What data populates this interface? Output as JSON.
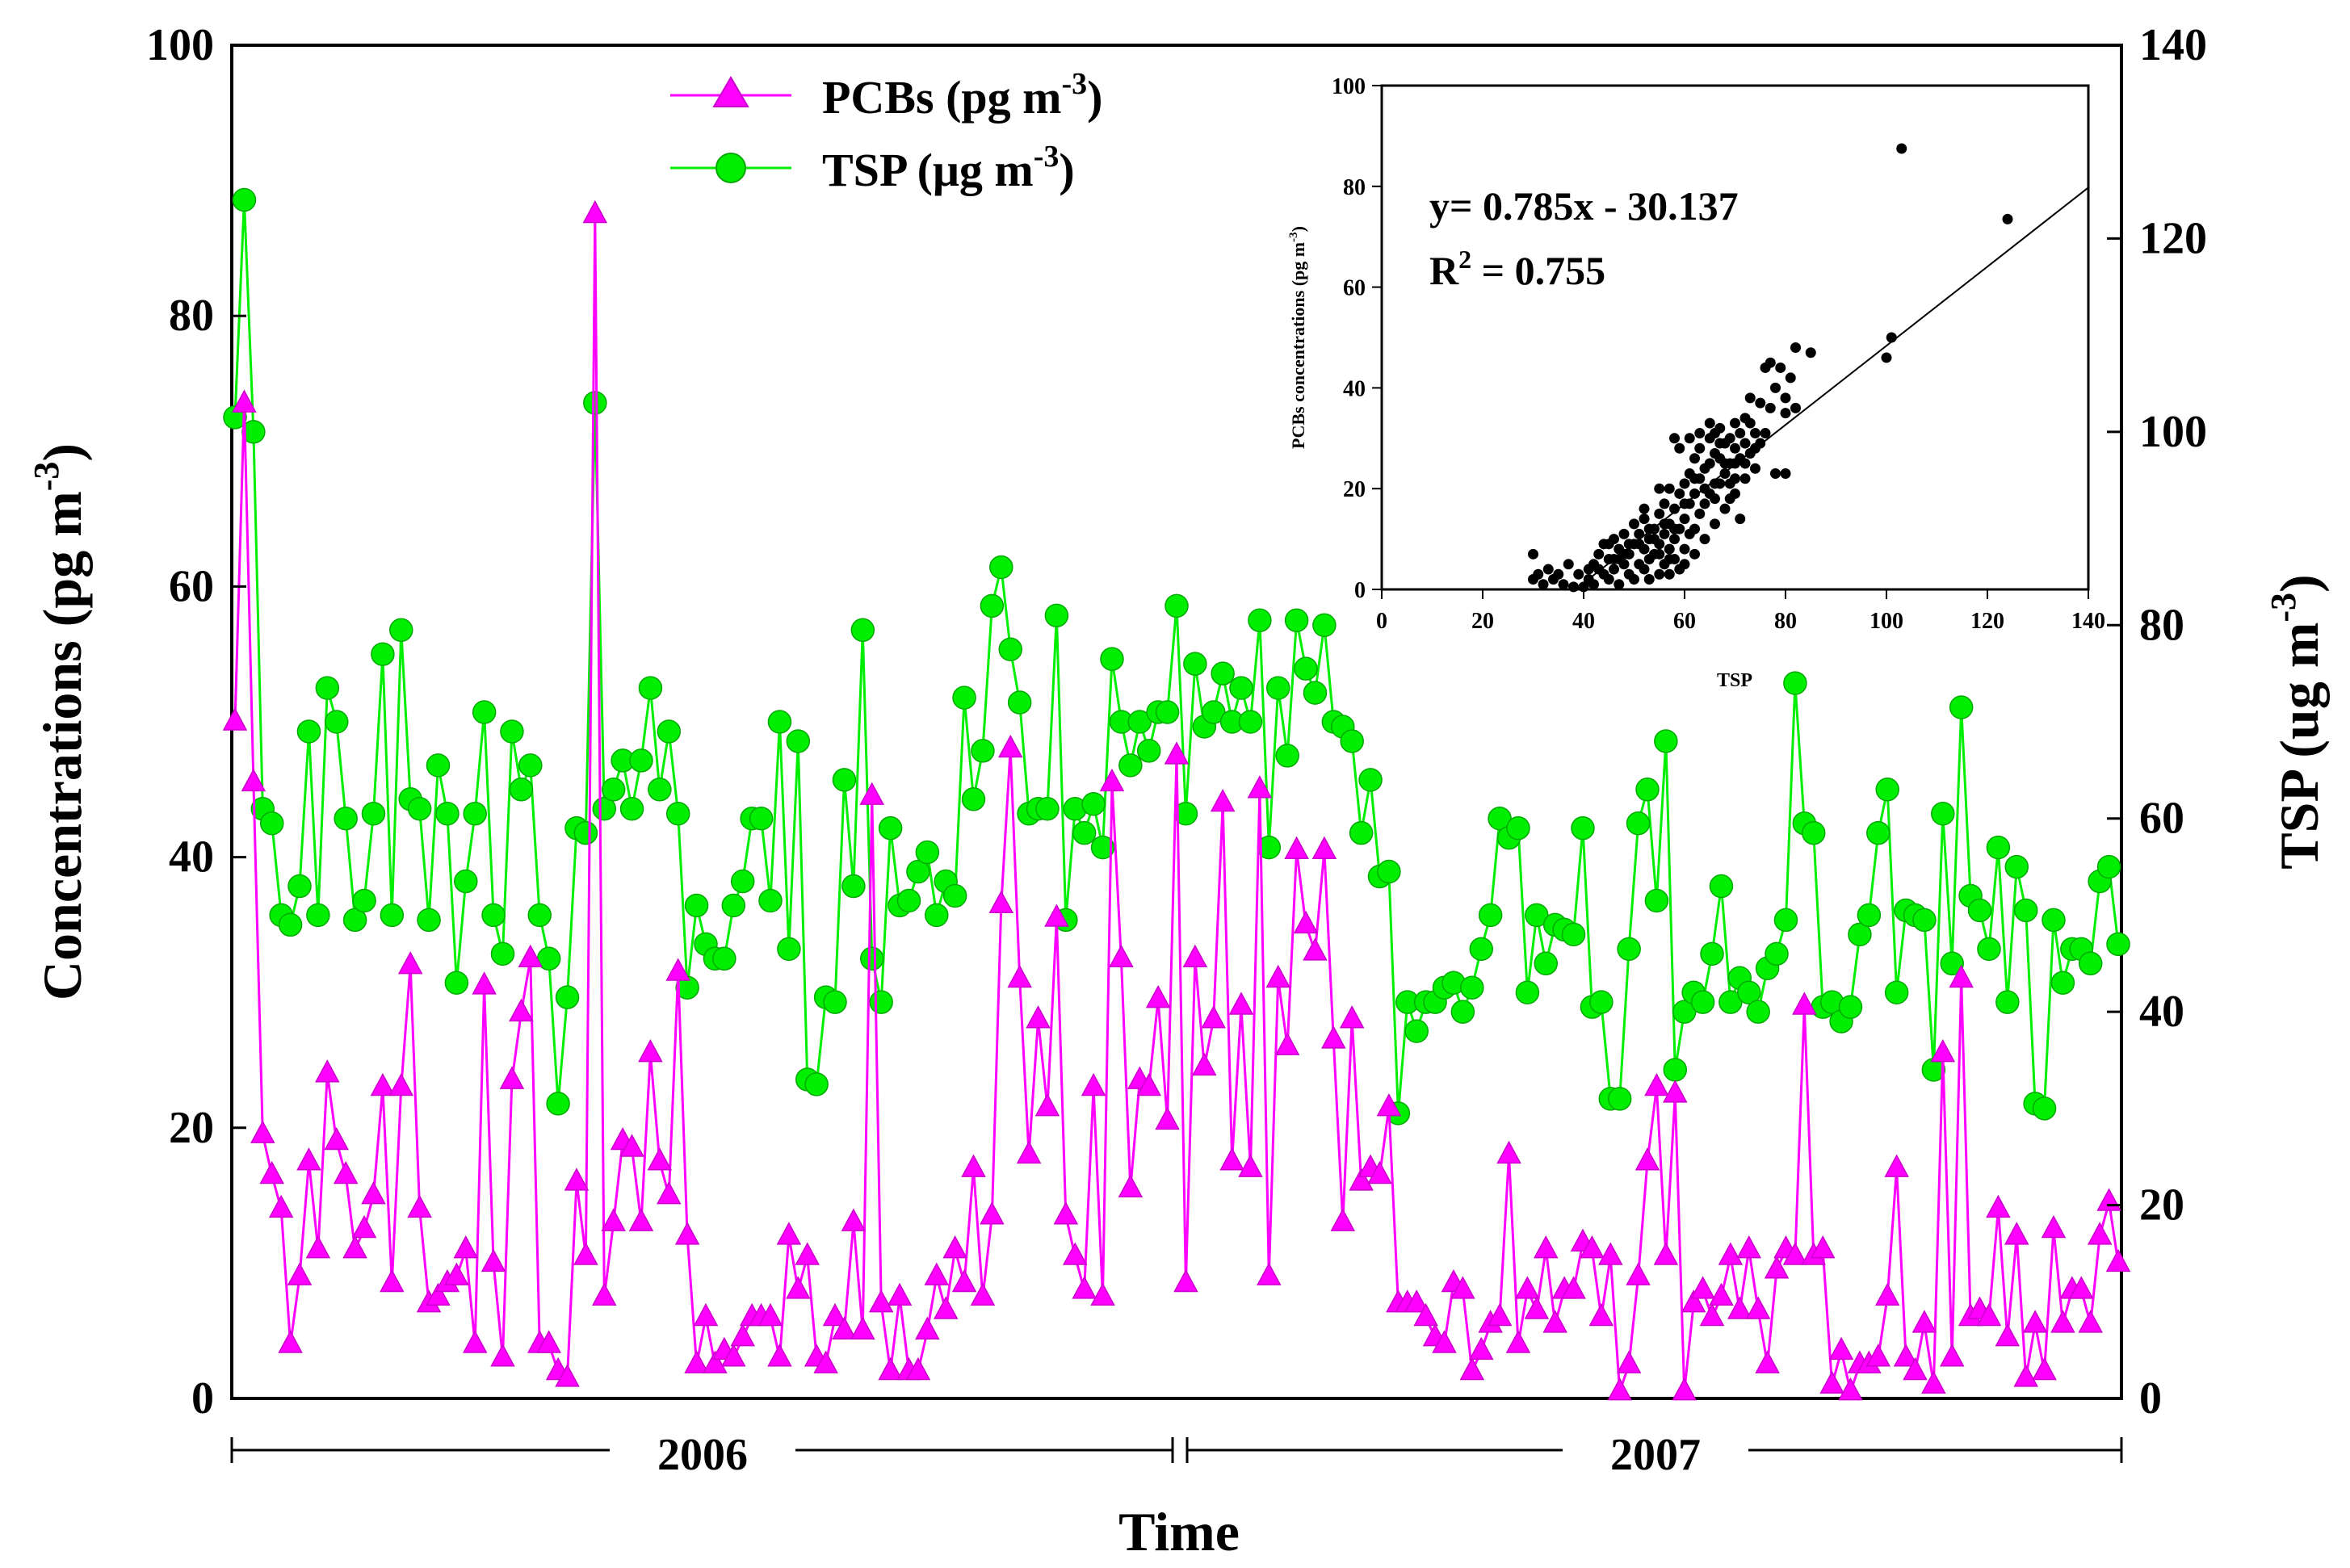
{
  "chart_data": [
    {
      "type": "line",
      "title": "",
      "xlabel": "Time",
      "ylabel": "Concentrations (pg m-3)",
      "ylabel_right": "TSP (ug m-3)",
      "ylim": [
        0,
        100
      ],
      "ylim_right": [
        0,
        140
      ],
      "yticks": [
        "0",
        "20",
        "40",
        "60",
        "80",
        "100"
      ],
      "yticks_right": [
        "0",
        "20",
        "40",
        "60",
        "80",
        "100",
        "120",
        "140"
      ],
      "periods": [
        "2006",
        "2007"
      ],
      "legend_position": "top-center",
      "series": [
        {
          "name": "PCBs (pg m-3)",
          "legend_main": "PCBs (pg m",
          "legend_sup": "-3",
          "legend_tail": ")",
          "axis": "left",
          "color": "#ff00ff",
          "marker": "triangle",
          "values": [
            50,
            73.5,
            45.5,
            19.5,
            16.5,
            14,
            4,
            9,
            17.5,
            11,
            24,
            19,
            16.5,
            11,
            12.5,
            15,
            23,
            8.5,
            23,
            32,
            14,
            7,
            7.5,
            8.5,
            9,
            11,
            4,
            30.5,
            10,
            3,
            23.5,
            28.5,
            32.5,
            4,
            4,
            2,
            1.5,
            16,
            10.5,
            87.5,
            7.5,
            13,
            19,
            18.5,
            13,
            25.5,
            17.5,
            15,
            31.5,
            12,
            2.5,
            6,
            2.5,
            3.5,
            3,
            4.5,
            6,
            6,
            6,
            3,
            12,
            8,
            10.5,
            3,
            2.5,
            6,
            5,
            13,
            5,
            44.5,
            7,
            2,
            7.5,
            2,
            2,
            5,
            9,
            6.5,
            11,
            8.5,
            17,
            7.5,
            13.5,
            36.5,
            48,
            31,
            18,
            28,
            21.5,
            35.5,
            13.5,
            10.5,
            8,
            23,
            7.5,
            45.5,
            32.5,
            15.5,
            23.5,
            23,
            29.5,
            20.5,
            47.5,
            8.5,
            32.5,
            24.5,
            28,
            44,
            17.5,
            29,
            17,
            45,
            9,
            31,
            26,
            40.5,
            35,
            33,
            40.5,
            26.5,
            13,
            28,
            16,
            17,
            16.5,
            21.5,
            7,
            7,
            7,
            6,
            4.5,
            4,
            8.5,
            8,
            2,
            3.5,
            5.5,
            6,
            18,
            4,
            8,
            6.5,
            11,
            5.5,
            8,
            8,
            11.5,
            11,
            6,
            10.5,
            0.5,
            2.5,
            9,
            17.5,
            23,
            10.5,
            22.5,
            0.5,
            7,
            8,
            6,
            7.5,
            10.5,
            6.5,
            11,
            6.5,
            2.5,
            9.5,
            11,
            10.5,
            29,
            10.5,
            11,
            1,
            3.5,
            0.5,
            2.5,
            2.5,
            3,
            7.5,
            17,
            3,
            2,
            5.5,
            1,
            25.5,
            3,
            31,
            6,
            6.5,
            6,
            14,
            4.5,
            12,
            1.5,
            5.5,
            2,
            12.5,
            5.5,
            8,
            8,
            5.5,
            12,
            14.5,
            10
          ]
        },
        {
          "name": "TSP (μg m-3)",
          "legend_main": "TSP (μg m",
          "legend_sup": "-3",
          "legend_tail": ")",
          "axis": "right",
          "color": "#00ee00",
          "marker": "circle",
          "values": [
            101.5,
            124,
            100,
            61,
            59.5,
            50,
            49,
            53,
            69,
            50,
            73.5,
            70,
            60,
            49.5,
            51.5,
            60.5,
            77,
            50,
            79.5,
            62,
            61,
            49.5,
            65.5,
            60.5,
            43,
            53.5,
            60.5,
            71,
            50,
            46,
            69,
            63,
            65.5,
            50,
            45.5,
            30.5,
            41.5,
            59,
            58.5,
            103,
            61,
            63,
            66,
            61,
            66,
            73.5,
            63,
            69,
            60.5,
            42.5,
            51,
            47,
            45.5,
            45.5,
            51,
            53.5,
            60,
            60,
            51.5,
            70,
            46.5,
            68,
            33,
            32.5,
            41.5,
            41,
            64,
            53,
            79.5,
            45.5,
            41,
            59,
            51,
            51.5,
            54.5,
            56.5,
            50,
            53.5,
            52,
            72.5,
            62,
            67,
            82,
            86,
            77.5,
            72,
            60.5,
            61,
            61,
            81,
            49.5,
            61,
            58.5,
            61.5,
            57,
            76.5,
            70,
            65.5,
            70,
            67,
            71,
            71,
            82,
            60.5,
            76,
            69.5,
            71,
            75,
            70,
            73.5,
            70,
            80.5,
            57,
            73.5,
            66.5,
            80.5,
            75.5,
            73,
            80,
            70,
            69.5,
            68,
            58.5,
            64,
            54,
            54.5,
            29.5,
            41,
            38,
            41,
            41,
            42.5,
            43,
            40,
            42.5,
            46.5,
            50,
            60,
            58,
            59,
            42,
            50,
            45,
            49,
            48.5,
            48,
            59,
            40.5,
            41,
            31,
            31,
            46.5,
            59.5,
            63,
            51.5,
            68,
            34,
            40,
            42,
            41,
            46,
            53,
            41,
            43.5,
            42,
            40,
            44.5,
            46,
            49.5,
            74,
            59.5,
            58.5,
            40.5,
            41,
            39,
            40.5,
            48,
            50,
            58.5,
            63,
            42,
            50.5,
            50,
            49.5,
            34,
            60.5,
            45,
            71.5,
            52,
            50.5,
            46.5,
            57,
            41,
            55,
            50.5,
            30.5,
            30,
            49.5,
            43,
            46.5,
            46.5,
            45,
            53.5,
            55,
            47
          ]
        }
      ]
    },
    {
      "type": "scatter",
      "title": "",
      "xlabel": "TSP",
      "ylabel": "PCBs concentrations (pg m-3)",
      "ylabel_main": "PCBs concentrations (pg m",
      "ylabel_sup": "-3",
      "ylabel_tail": ")",
      "xlim": [
        0,
        140
      ],
      "ylim": [
        0,
        100
      ],
      "xticks": [
        "0",
        "20",
        "40",
        "60",
        "80",
        "100",
        "120",
        "140"
      ],
      "yticks": [
        "0",
        "20",
        "40",
        "60",
        "80",
        "100"
      ],
      "equation": "y= 0.785x - 30.137",
      "r2_main": "R",
      "r2_sup": "2",
      "r2_tail": " = 0.755",
      "fit": {
        "slope": 0.785,
        "intercept": -30.137,
        "x_from": 40,
        "x_to": 140
      },
      "points": [
        [
          30,
          7
        ],
        [
          31,
          3
        ],
        [
          32,
          1
        ],
        [
          33,
          4
        ],
        [
          34,
          2
        ],
        [
          35,
          3
        ],
        [
          36,
          1
        ],
        [
          30,
          2
        ],
        [
          38,
          0.5
        ],
        [
          40,
          0.5
        ],
        [
          41,
          2
        ],
        [
          42,
          5
        ],
        [
          42,
          1
        ],
        [
          43,
          7
        ],
        [
          44,
          3
        ],
        [
          45,
          6
        ],
        [
          45,
          2
        ],
        [
          46,
          10
        ],
        [
          46,
          4
        ],
        [
          47,
          8
        ],
        [
          47,
          1
        ],
        [
          48,
          5
        ],
        [
          48,
          11
        ],
        [
          49,
          3
        ],
        [
          49,
          7
        ],
        [
          50,
          9
        ],
        [
          50,
          2
        ],
        [
          50,
          13
        ],
        [
          51,
          5
        ],
        [
          51,
          11
        ],
        [
          52,
          4
        ],
        [
          52,
          8
        ],
        [
          52,
          14
        ],
        [
          53,
          6
        ],
        [
          53,
          10
        ],
        [
          53,
          2
        ],
        [
          54,
          12
        ],
        [
          54,
          7
        ],
        [
          55,
          15
        ],
        [
          55,
          3
        ],
        [
          55,
          9
        ],
        [
          56,
          11
        ],
        [
          56,
          5
        ],
        [
          56,
          17
        ],
        [
          57,
          8
        ],
        [
          57,
          13
        ],
        [
          57,
          3
        ],
        [
          58,
          16
        ],
        [
          58,
          10
        ],
        [
          58,
          6
        ],
        [
          59,
          19
        ],
        [
          59,
          12
        ],
        [
          59,
          4
        ],
        [
          60,
          21
        ],
        [
          60,
          14
        ],
        [
          60,
          8
        ],
        [
          61,
          23
        ],
        [
          61,
          17
        ],
        [
          61,
          11
        ],
        [
          62,
          26
        ],
        [
          62,
          19
        ],
        [
          62,
          7
        ],
        [
          63,
          28
        ],
        [
          63,
          22
        ],
        [
          63,
          15
        ],
        [
          64,
          24
        ],
        [
          64,
          17
        ],
        [
          64,
          10
        ],
        [
          65,
          30
        ],
        [
          65,
          25
        ],
        [
          65,
          19
        ],
        [
          66,
          31
        ],
        [
          66,
          27
        ],
        [
          66,
          13
        ],
        [
          67,
          32
        ],
        [
          67,
          26
        ],
        [
          67,
          21
        ],
        [
          68,
          29
        ],
        [
          68,
          23
        ],
        [
          68,
          16
        ],
        [
          69,
          30
        ],
        [
          69,
          25
        ],
        [
          69,
          18
        ],
        [
          70,
          33
        ],
        [
          70,
          28
        ],
        [
          70,
          22
        ],
        [
          71,
          31
        ],
        [
          71,
          26
        ],
        [
          71,
          14
        ],
        [
          72,
          34
        ],
        [
          72,
          29
        ],
        [
          72,
          22
        ],
        [
          73,
          33
        ],
        [
          73,
          27
        ],
        [
          74,
          31
        ],
        [
          74,
          24
        ],
        [
          75,
          37
        ],
        [
          75,
          29
        ],
        [
          76,
          44
        ],
        [
          77,
          45
        ],
        [
          78,
          40
        ],
        [
          78,
          23
        ],
        [
          80,
          38
        ],
        [
          80,
          23
        ],
        [
          81,
          42
        ],
        [
          82,
          48
        ],
        [
          82,
          36
        ],
        [
          85,
          47
        ],
        [
          100,
          46
        ],
        [
          101,
          50
        ],
        [
          103,
          87.5
        ],
        [
          124,
          73.5
        ],
        [
          37,
          5
        ],
        [
          39,
          3
        ],
        [
          44,
          9
        ],
        [
          46,
          6
        ],
        [
          48,
          7
        ],
        [
          51,
          9
        ],
        [
          54,
          10
        ],
        [
          56,
          13
        ],
        [
          58,
          12
        ],
        [
          60,
          17
        ],
        [
          62,
          22
        ],
        [
          64,
          20
        ],
        [
          66,
          21
        ],
        [
          68,
          25
        ],
        [
          70,
          25
        ],
        [
          57,
          20
        ],
        [
          55,
          20
        ],
        [
          52,
          16
        ],
        [
          61,
          30
        ],
        [
          63,
          31
        ],
        [
          59,
          28
        ],
        [
          58,
          30
        ],
        [
          65,
          33
        ],
        [
          67,
          29
        ],
        [
          73,
          38
        ],
        [
          77,
          36
        ],
        [
          79,
          44
        ],
        [
          72,
          25
        ],
        [
          69,
          21
        ],
        [
          62,
          12
        ],
        [
          60,
          5
        ],
        [
          57,
          6
        ],
        [
          53,
          12
        ],
        [
          49,
          9
        ],
        [
          47,
          6
        ],
        [
          45,
          9
        ],
        [
          43,
          4
        ],
        [
          41,
          4
        ],
        [
          55,
          7
        ],
        [
          66,
          18
        ],
        [
          70,
          19
        ],
        [
          74,
          28
        ],
        [
          76,
          31
        ],
        [
          80,
          35
        ]
      ]
    }
  ]
}
